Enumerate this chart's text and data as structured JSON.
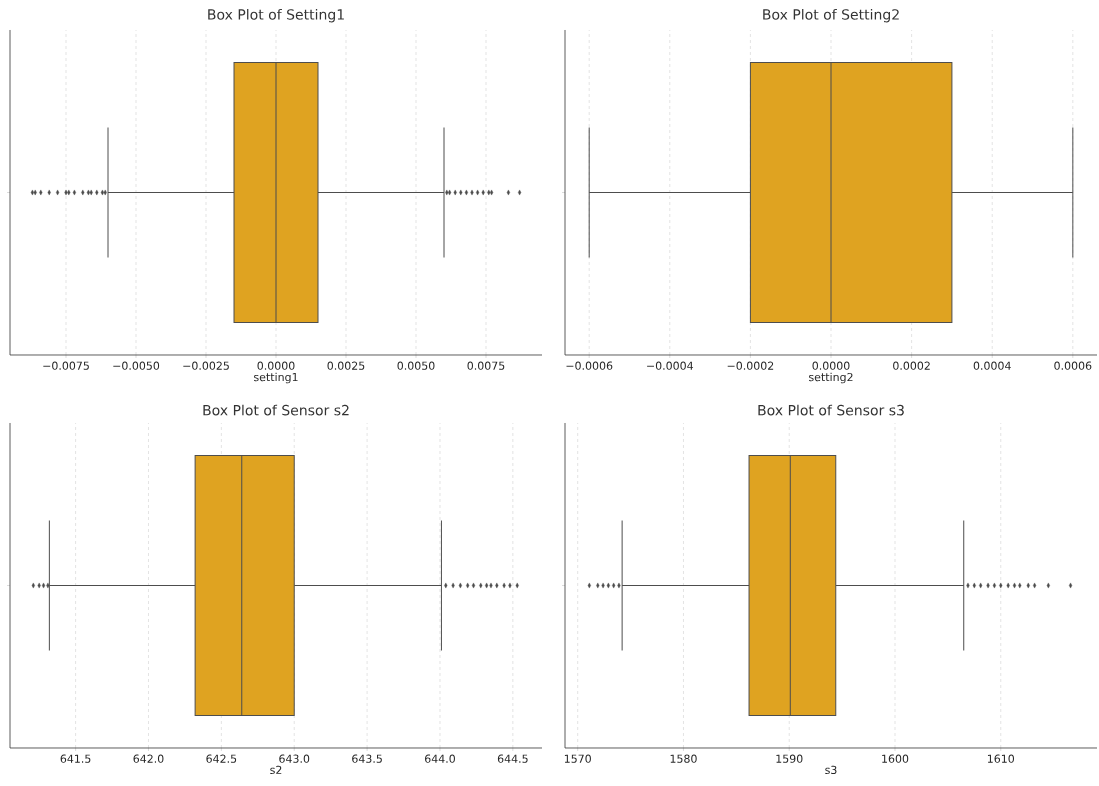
{
  "chart_data": [
    {
      "type": "box",
      "title": "Box Plot of Setting1",
      "xlabel": "setting1",
      "categories": [
        null
      ],
      "orientation": "horizontal",
      "color": "#dfa321",
      "marker": "diamond",
      "grid": "x",
      "tick_labels": "x",
      "boxes": [
        {
          "low": -0.006,
          "q1": -0.0015,
          "median": 0,
          "q3": 0.0015,
          "high": 0.006,
          "outliers": [
            -0.0087,
            -0.0086,
            -0.0084,
            -0.0081,
            -0.0078,
            -0.0075,
            -0.0074,
            -0.0072,
            -0.0069,
            -0.0067,
            -0.0066,
            -0.0064,
            -0.0062,
            -0.0061,
            0.0061,
            0.0062,
            0.0064,
            0.0066,
            0.0068,
            0.007,
            0.0072,
            0.0074,
            0.0076,
            0.0077,
            0.0083,
            0.0087
          ]
        }
      ],
      "xlim": [
        -0.0095,
        0.0095
      ],
      "xticks": [
        {
          "value": -0.0075,
          "label": "−0.0075"
        },
        {
          "value": -0.005,
          "label": "−0.0050"
        },
        {
          "value": -0.0025,
          "label": "−0.0025"
        },
        {
          "value": 0,
          "label": "0.0000"
        },
        {
          "value": 0.0025,
          "label": "0.0025"
        },
        {
          "value": 0.005,
          "label": "0.0050"
        },
        {
          "value": 0.0075,
          "label": "0.0075"
        }
      ]
    },
    {
      "type": "box",
      "title": "Box Plot of Setting2",
      "xlabel": "setting2",
      "categories": [
        null
      ],
      "orientation": "horizontal",
      "color": "#dfa321",
      "marker": "diamond",
      "grid": "x",
      "tick_labels": "x",
      "boxes": [
        {
          "low": -0.0006,
          "q1": -0.0002,
          "median": 0,
          "q3": 0.0003,
          "high": 0.0006
        }
      ],
      "xlim": [
        -0.00066,
        0.00066
      ],
      "xticks": [
        {
          "value": -0.0006,
          "label": "−0.0006"
        },
        {
          "value": -0.0004,
          "label": "−0.0004"
        },
        {
          "value": -0.0002,
          "label": "−0.0002"
        },
        {
          "value": 0,
          "label": "0.0000"
        },
        {
          "value": 0.0002,
          "label": "0.0002"
        },
        {
          "value": 0.0004,
          "label": "0.0004"
        },
        {
          "value": 0.0006,
          "label": "0.0006"
        }
      ]
    },
    {
      "type": "box",
      "title": "Box Plot of Sensor s2",
      "xlabel": "s2",
      "categories": [
        null
      ],
      "orientation": "horizontal",
      "color": "#dfa321",
      "marker": "diamond",
      "grid": "x",
      "tick_labels": "x",
      "boxes": [
        {
          "low": 641.32,
          "q1": 642.32,
          "median": 642.64,
          "q3": 643.0,
          "high": 644.01,
          "outliers": [
            641.21,
            641.25,
            641.28,
            641.31,
            644.04,
            644.09,
            644.14,
            644.19,
            644.23,
            644.28,
            644.32,
            644.35,
            644.39,
            644.44,
            644.48,
            644.53
          ]
        }
      ],
      "xlim": [
        641.05,
        644.7
      ],
      "xticks": [
        641.5,
        {
          "value": 642,
          "label": "642.0"
        },
        642.5,
        {
          "value": 643,
          "label": "643.0"
        },
        643.5,
        {
          "value": 644,
          "label": "644.0"
        },
        644.5
      ]
    },
    {
      "type": "box",
      "title": "Box Plot of Sensor s3",
      "xlabel": "s3",
      "categories": [
        null
      ],
      "orientation": "horizontal",
      "color": "#dfa321",
      "marker": "diamond",
      "grid": "x",
      "tick_labels": "x",
      "boxes": [
        {
          "low": 1574.2,
          "q1": 1586.2,
          "median": 1590.1,
          "q3": 1594.4,
          "high": 1606.5,
          "outliers": [
            1571.1,
            1571.9,
            1572.4,
            1572.9,
            1573.4,
            1573.9,
            1606.9,
            1607.5,
            1608.1,
            1608.8,
            1609.4,
            1610.0,
            1610.7,
            1611.3,
            1611.8,
            1612.6,
            1613.2,
            1614.5,
            1616.6
          ]
        }
      ],
      "xlim": [
        1568.8,
        1619.1
      ],
      "xticks": [
        1570,
        1580,
        1590,
        1600,
        1610
      ]
    }
  ]
}
